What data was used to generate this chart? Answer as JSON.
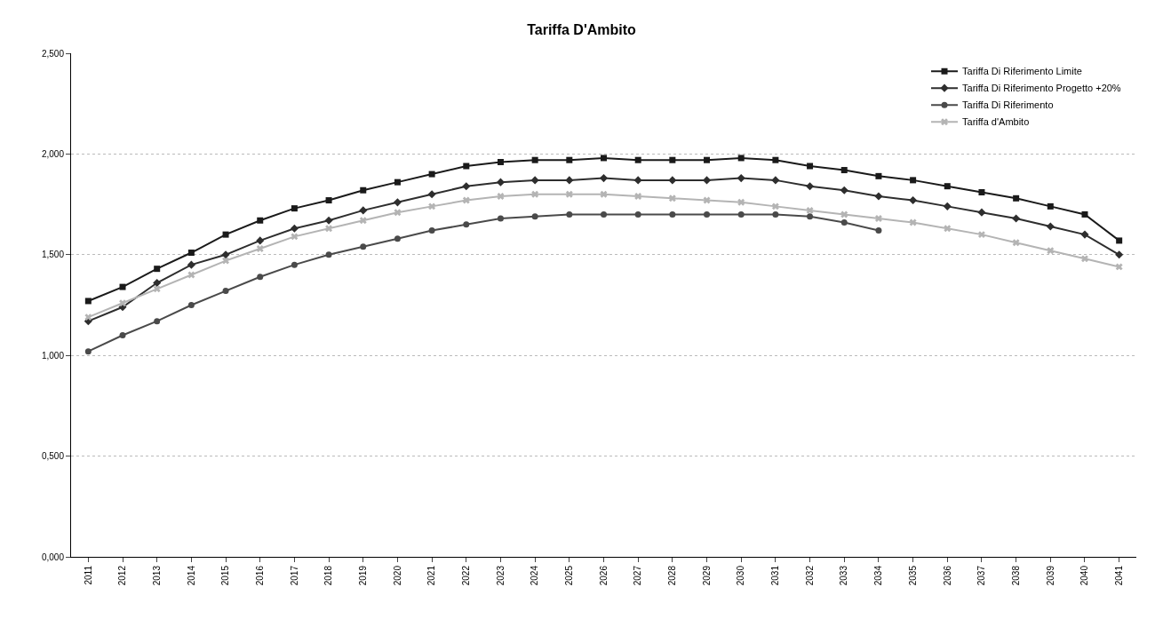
{
  "chart_data": {
    "type": "line",
    "title": "Tariffa D'Ambito",
    "categories": [
      "2011",
      "2012",
      "2013",
      "2014",
      "2015",
      "2016",
      "2017",
      "2018",
      "2019",
      "2020",
      "2021",
      "2022",
      "2023",
      "2024",
      "2025",
      "2026",
      "2027",
      "2028",
      "2029",
      "2030",
      "2031",
      "2032",
      "2033",
      "2034",
      "2035",
      "2036",
      "2037",
      "2038",
      "2039",
      "2040",
      "2041"
    ],
    "series": [
      {
        "name": "Tariffa Di Riferimento Limite",
        "color": "#1a1a1a",
        "marker": "square",
        "values": [
          1.27,
          1.34,
          1.43,
          1.51,
          1.6,
          1.67,
          1.73,
          1.77,
          1.82,
          1.86,
          1.9,
          1.94,
          1.96,
          1.97,
          1.97,
          1.98,
          1.97,
          1.97,
          1.97,
          1.98,
          1.97,
          1.94,
          1.92,
          1.89,
          1.87,
          1.84,
          1.81,
          1.78,
          1.74,
          1.7,
          1.57
        ]
      },
      {
        "name": "Tariffa Di Riferimento Progetto +20%",
        "color": "#2e2e2e",
        "marker": "diamond",
        "values": [
          1.17,
          1.24,
          1.36,
          1.45,
          1.5,
          1.57,
          1.63,
          1.67,
          1.72,
          1.76,
          1.8,
          1.84,
          1.86,
          1.87,
          1.87,
          1.88,
          1.87,
          1.87,
          1.87,
          1.88,
          1.87,
          1.84,
          1.82,
          1.79,
          1.77,
          1.74,
          1.71,
          1.68,
          1.64,
          1.6,
          1.5
        ]
      },
      {
        "name": "Tariffa Di Riferimento",
        "color": "#4a4a4a",
        "marker": "circle",
        "values": [
          1.02,
          1.1,
          1.17,
          1.25,
          1.32,
          1.39,
          1.45,
          1.5,
          1.54,
          1.58,
          1.62,
          1.65,
          1.68,
          1.69,
          1.7,
          1.7,
          1.7,
          1.7,
          1.7,
          1.7,
          1.7,
          1.69,
          1.66,
          1.62,
          null,
          null,
          null,
          null,
          null,
          null,
          null
        ]
      },
      {
        "name": "Tariffa d'Ambito",
        "color": "#b4b4b4",
        "marker": "cross",
        "values": [
          1.19,
          1.26,
          1.33,
          1.4,
          1.47,
          1.53,
          1.59,
          1.63,
          1.67,
          1.71,
          1.74,
          1.77,
          1.79,
          1.8,
          1.8,
          1.8,
          1.79,
          1.78,
          1.77,
          1.76,
          1.74,
          1.72,
          1.7,
          1.68,
          1.66,
          1.63,
          1.6,
          1.56,
          1.52,
          1.48,
          1.44
        ]
      }
    ],
    "ylim": [
      0,
      2.5
    ],
    "yticks": [
      {
        "value": 0,
        "label": "0,000"
      },
      {
        "value": 0.5,
        "label": "0,500"
      },
      {
        "value": 1,
        "label": "1,000"
      },
      {
        "value": 1.5,
        "label": "1,500"
      },
      {
        "value": 2,
        "label": "2,000"
      },
      {
        "value": 2.5,
        "label": "2,500"
      }
    ],
    "grid": "y",
    "legend": "top right",
    "line_style": "solid"
  }
}
